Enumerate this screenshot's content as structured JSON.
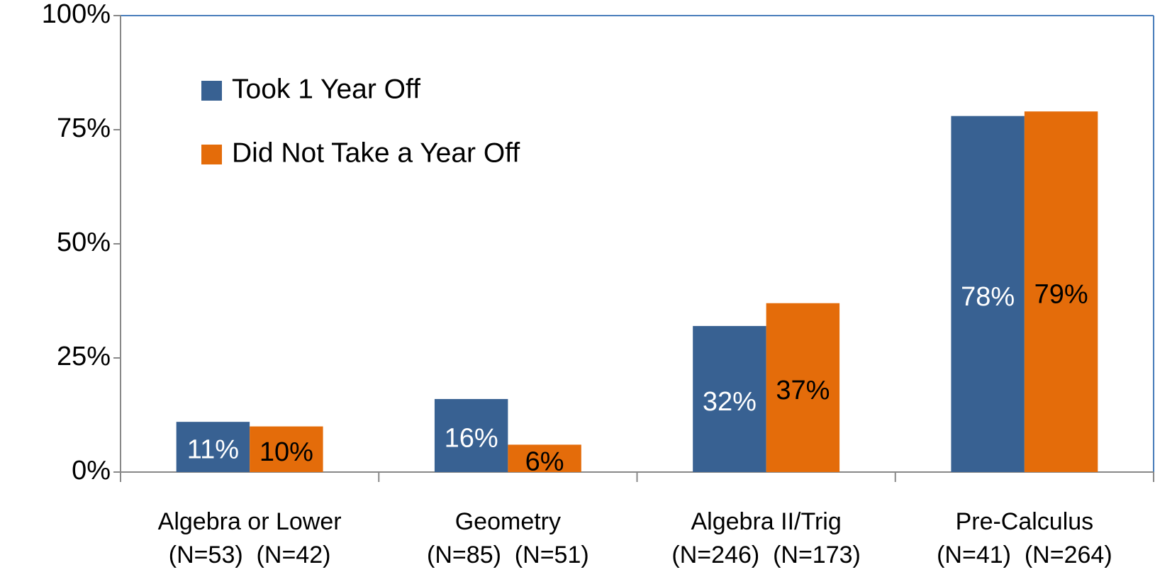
{
  "chart_data": {
    "type": "bar",
    "categories": [
      "Algebra or Lower",
      "Geometry",
      "Algebra II/Trig",
      "Pre-Calculus"
    ],
    "category_counts": [
      "(N=53)  (N=42)",
      "(N=85)  (N=51)",
      "(N=246)  (N=173)",
      "(N=41)  (N=264)"
    ],
    "series": [
      {
        "name": "Took 1 Year Off",
        "color": "#386192",
        "label_color": "#ffffff",
        "values": [
          11,
          16,
          32,
          78
        ],
        "value_labels": [
          "11%",
          "16%",
          "32%",
          "78%"
        ]
      },
      {
        "name": "Did Not Take a Year Off",
        "color": "#e46c0a",
        "label_color": "#000000",
        "values": [
          10,
          6,
          37,
          79
        ],
        "value_labels": [
          "10%",
          "6%",
          "37%",
          "79%"
        ]
      }
    ],
    "ylim": [
      0,
      100
    ],
    "yticks": [
      {
        "value": 0,
        "label": "0%"
      },
      {
        "value": 25,
        "label": "25%"
      },
      {
        "value": 50,
        "label": "50%"
      },
      {
        "value": 75,
        "label": "75%"
      },
      {
        "value": 100,
        "label": "100%"
      }
    ],
    "legend": "upper left"
  }
}
